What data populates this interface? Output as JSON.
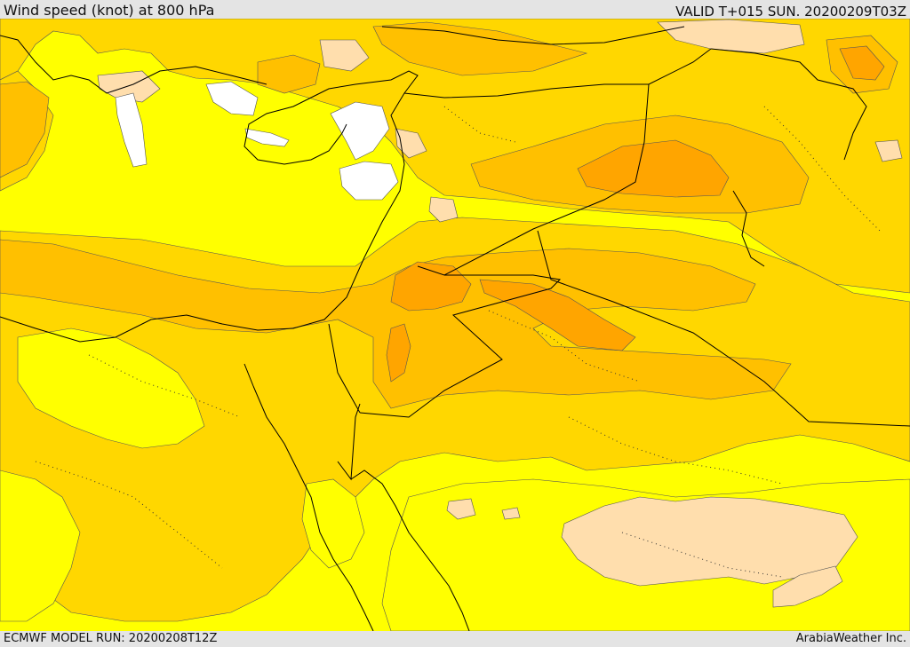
{
  "header": {
    "title": "Wind speed (knot) at 800 hPa",
    "valid_time": "VALID T+015 SUN. 20200209T03Z"
  },
  "footer": {
    "model_run": "ECMWF MODEL RUN: 20200208T12Z",
    "credit": "ArabiaWeather Inc."
  },
  "legend_colors": {
    "calm": "#ffffff",
    "light": "#ffdead",
    "low": "#ffff00",
    "moderate": "#ffd700",
    "fresh": "#ffc000",
    "strong": "#ffa500",
    "very_strong": "#ff8c00"
  }
}
